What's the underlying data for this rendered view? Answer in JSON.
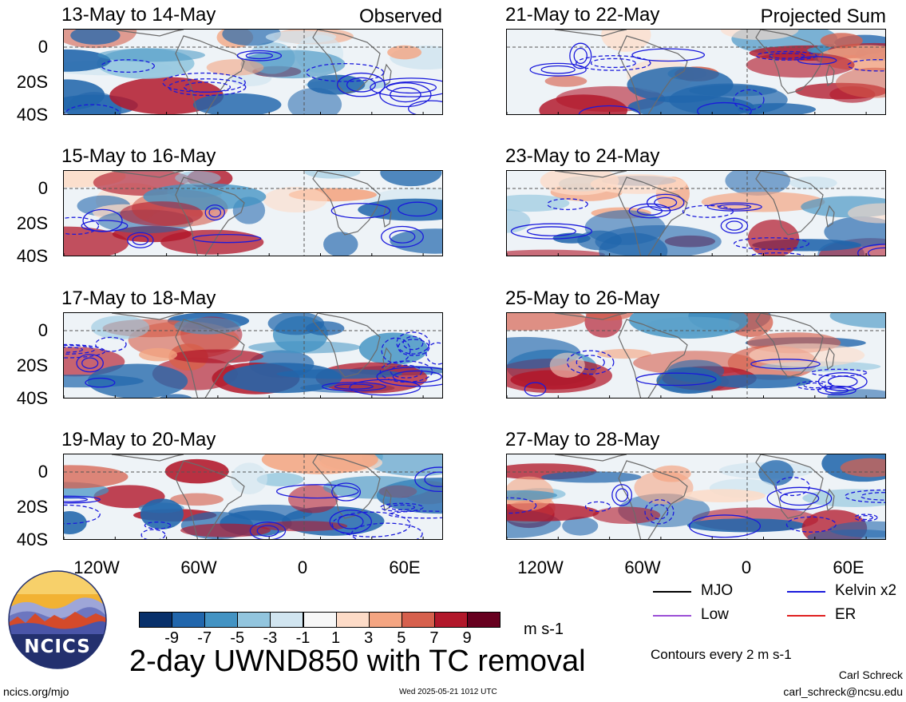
{
  "panels_left": [
    {
      "title": "13-May to 14-May",
      "label": "Observed"
    },
    {
      "title": "15-May to 16-May",
      "label": ""
    },
    {
      "title": "17-May to 18-May",
      "label": ""
    },
    {
      "title": "19-May to 20-May",
      "label": ""
    }
  ],
  "panels_right": [
    {
      "title": "21-May to 22-May",
      "label": "Projected Sum"
    },
    {
      "title": "23-May to 24-May",
      "label": ""
    },
    {
      "title": "25-May to 26-May",
      "label": ""
    },
    {
      "title": "27-May to 28-May",
      "label": ""
    }
  ],
  "y_ticks": [
    "0",
    "20S",
    "40S"
  ],
  "x_ticks": [
    "120W",
    "60W",
    "0",
    "60E"
  ],
  "legend": [
    {
      "name": "MJO",
      "color": "#000000"
    },
    {
      "name": "Kelvin x2",
      "color": "#1a1adc"
    },
    {
      "name": "Low",
      "color": "#9b4fd6"
    },
    {
      "name": "ER",
      "color": "#e02020"
    }
  ],
  "colorbar": {
    "colors": [
      "#08306b",
      "#2166ac",
      "#4393c3",
      "#92c5de",
      "#d1e5f0",
      "#f7f7f7",
      "#fddbc7",
      "#f4a582",
      "#d6604d",
      "#b2182b",
      "#67001f"
    ],
    "ticks": [
      "-9",
      "-7",
      "-5",
      "-3",
      "-1",
      "1",
      "3",
      "5",
      "7",
      "9"
    ],
    "units": "m s-1"
  },
  "main_title": "2-day UWND850 with TC removal",
  "contour_note": "Contours every 2 m s-1",
  "author": "Carl Schreck",
  "email": "carl_schreck@ncsu.edu",
  "website": "ncics.org/mjo",
  "timestamp": "Wed 2025-05-21 1012 UTC",
  "logo_text": "NCICS"
}
